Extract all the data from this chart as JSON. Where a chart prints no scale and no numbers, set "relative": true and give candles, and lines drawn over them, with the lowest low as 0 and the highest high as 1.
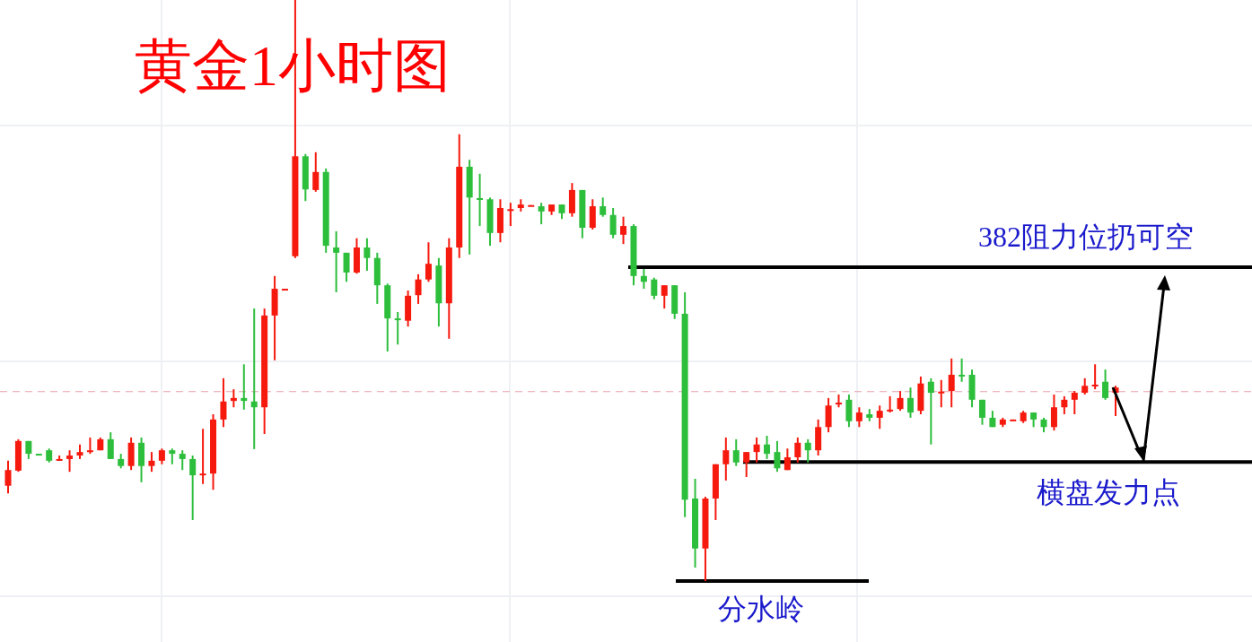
{
  "chart_data": {
    "type": "candlestick",
    "title": "黄金1小时图",
    "relative": true,
    "grid": true,
    "categories": [
      null,
      null,
      null,
      null,
      null,
      null,
      null,
      null,
      null,
      null,
      null,
      null,
      null,
      null,
      null,
      null,
      null,
      null,
      null,
      null,
      null,
      null,
      null,
      null,
      null,
      null,
      null,
      null,
      null,
      null,
      null,
      null,
      null,
      null,
      null,
      null,
      null,
      null,
      null,
      null,
      null,
      null,
      null,
      null,
      null,
      null,
      null,
      null,
      null,
      null,
      null,
      null,
      null,
      null,
      null,
      null,
      null,
      null,
      null,
      null,
      null,
      null,
      null,
      null,
      null,
      null,
      null,
      null,
      null,
      null,
      null,
      null,
      null,
      null,
      null,
      null,
      null,
      null,
      null,
      null,
      null,
      null,
      null,
      null,
      null,
      null,
      null,
      null,
      null,
      null,
      null,
      null,
      null,
      null,
      null,
      null,
      null,
      null,
      null,
      null,
      null,
      null,
      null,
      null,
      null,
      null,
      null,
      null,
      null
    ],
    "ohlc": [
      [
        0.164,
        0.207,
        0.151,
        0.191
      ],
      [
        0.19,
        0.244,
        0.188,
        0.241
      ],
      [
        0.241,
        0.241,
        0.21,
        0.219
      ],
      [
        0.219,
        0.219,
        0.218,
        0.218
      ],
      [
        0.225,
        0.228,
        0.204,
        0.207
      ],
      [
        0.207,
        0.216,
        0.207,
        0.21
      ],
      [
        0.21,
        0.225,
        0.188,
        0.216
      ],
      [
        0.216,
        0.235,
        0.21,
        0.222
      ],
      [
        0.222,
        0.247,
        0.219,
        0.225
      ],
      [
        0.225,
        0.247,
        0.225,
        0.244
      ],
      [
        0.244,
        0.256,
        0.21,
        0.21
      ],
      [
        0.21,
        0.219,
        0.194,
        0.198
      ],
      [
        0.198,
        0.247,
        0.191,
        0.238
      ],
      [
        0.238,
        0.247,
        0.17,
        0.198
      ],
      [
        0.198,
        0.222,
        0.188,
        0.207
      ],
      [
        0.207,
        0.228,
        0.201,
        0.225
      ],
      [
        0.225,
        0.228,
        0.201,
        0.219
      ],
      [
        0.219,
        0.225,
        0.191,
        0.21
      ],
      [
        0.21,
        0.216,
        0.105,
        0.182
      ],
      [
        0.182,
        0.262,
        0.167,
        0.185
      ],
      [
        0.185,
        0.287,
        0.157,
        0.278
      ],
      [
        0.278,
        0.349,
        0.265,
        0.309
      ],
      [
        0.31,
        0.33,
        0.299,
        0.315
      ],
      [
        0.315,
        0.373,
        0.295,
        0.31
      ],
      [
        0.309,
        0.469,
        0.227,
        0.299
      ],
      [
        0.299,
        0.469,
        0.253,
        0.457
      ],
      [
        0.457,
        0.525,
        0.38,
        0.503
      ],
      [
        0.502,
        0.503,
        0.502,
        0.503
      ],
      [
        0.559,
        1,
        0.556,
        0.731
      ],
      [
        0.731,
        0.735,
        0.654,
        0.674
      ],
      [
        0.673,
        0.738,
        0.67,
        0.704
      ],
      [
        0.704,
        0.71,
        0.565,
        0.577
      ],
      [
        0.574,
        0.602,
        0.497,
        0.565
      ],
      [
        0.565,
        0.565,
        0.515,
        0.531
      ],
      [
        0.531,
        0.59,
        0.529,
        0.574
      ],
      [
        0.574,
        0.59,
        0.534,
        0.556
      ],
      [
        0.556,
        0.565,
        0.477,
        0.509
      ],
      [
        0.509,
        0.512,
        0.395,
        0.452
      ],
      [
        0.452,
        0.463,
        0.407,
        0.449
      ],
      [
        0.448,
        0.5,
        0.438,
        0.491
      ],
      [
        0.492,
        0.528,
        0.477,
        0.519
      ],
      [
        0.519,
        0.583,
        0.515,
        0.546
      ],
      [
        0.543,
        0.556,
        0.438,
        0.478
      ],
      [
        0.478,
        0.59,
        0.417,
        0.574
      ],
      [
        0.574,
        0.769,
        0.556,
        0.713
      ],
      [
        0.713,
        0.725,
        0.562,
        0.66
      ],
      [
        0.659,
        0.701,
        0.611,
        0.657
      ],
      [
        0.657,
        0.66,
        0.577,
        0.599
      ],
      [
        0.599,
        0.657,
        0.583,
        0.642
      ],
      [
        0.639,
        0.651,
        0.611,
        0.64
      ],
      [
        0.642,
        0.657,
        0.636,
        0.648
      ],
      [
        0.645,
        0.647,
        0.645,
        0.647
      ],
      [
        0.645,
        0.651,
        0.614,
        0.636
      ],
      [
        0.636,
        0.648,
        0.63,
        0.648
      ],
      [
        0.648,
        0.648,
        0.623,
        0.633
      ],
      [
        0.633,
        0.685,
        0.627,
        0.673
      ],
      [
        0.673,
        0.673,
        0.59,
        0.608
      ],
      [
        0.608,
        0.657,
        0.605,
        0.645
      ],
      [
        0.645,
        0.66,
        0.627,
        0.63
      ],
      [
        0.63,
        0.642,
        0.59,
        0.596
      ],
      [
        0.596,
        0.627,
        0.58,
        0.611
      ],
      [
        0.611,
        0.614,
        0.509,
        0.525
      ],
      [
        0.525,
        0.537,
        0.503,
        0.515
      ],
      [
        0.519,
        0.522,
        0.485,
        0.491
      ],
      [
        0.491,
        0.509,
        0.469,
        0.509
      ],
      [
        0.509,
        0.509,
        0.451,
        0.46
      ],
      [
        0.46,
        0.497,
        0.11,
        0.14
      ],
      [
        0.142,
        0.176,
        0.023,
        0.056
      ],
      [
        0.056,
        0.145,
        0,
        0.142
      ],
      [
        0.142,
        0.201,
        0.105,
        0.201
      ],
      [
        0.201,
        0.247,
        0.173,
        0.225
      ],
      [
        0.225,
        0.244,
        0.198,
        0.204
      ],
      [
        0.204,
        0.222,
        0.179,
        0.222
      ],
      [
        0.222,
        0.247,
        0.204,
        0.235
      ],
      [
        0.235,
        0.25,
        0.21,
        0.219
      ],
      [
        0.222,
        0.241,
        0.188,
        0.194
      ],
      [
        0.191,
        0.228,
        0.191,
        0.213
      ],
      [
        0.213,
        0.247,
        0.204,
        0.238
      ],
      [
        0.238,
        0.244,
        0.204,
        0.225
      ],
      [
        0.225,
        0.278,
        0.216,
        0.265
      ],
      [
        0.265,
        0.315,
        0.256,
        0.302
      ],
      [
        0.306,
        0.321,
        0.299,
        0.307
      ],
      [
        0.312,
        0.321,
        0.265,
        0.275
      ],
      [
        0.275,
        0.299,
        0.265,
        0.29
      ],
      [
        0.287,
        0.296,
        0.275,
        0.281
      ],
      [
        0.281,
        0.302,
        0.262,
        0.293
      ],
      [
        0.293,
        0.318,
        0.29,
        0.295
      ],
      [
        0.296,
        0.327,
        0.293,
        0.315
      ],
      [
        0.315,
        0.333,
        0.281,
        0.29
      ],
      [
        0.293,
        0.352,
        0.287,
        0.34
      ],
      [
        0.343,
        0.349,
        0.235,
        0.324
      ],
      [
        0.324,
        0.346,
        0.299,
        0.326
      ],
      [
        0.327,
        0.383,
        0.299,
        0.355
      ],
      [
        0.355,
        0.383,
        0.343,
        0.352
      ],
      [
        0.355,
        0.364,
        0.299,
        0.312
      ],
      [
        0.312,
        0.312,
        0.269,
        0.281
      ],
      [
        0.281,
        0.293,
        0.265,
        0.265
      ],
      [
        0.269,
        0.281,
        0.265,
        0.278
      ],
      [
        0.276,
        0.278,
        0.276,
        0.278
      ],
      [
        0.275,
        0.293,
        0.272,
        0.29
      ],
      [
        0.29,
        0.29,
        0.265,
        0.278
      ],
      [
        0.278,
        0.281,
        0.256,
        0.265
      ],
      [
        0.265,
        0.321,
        0.259,
        0.299
      ],
      [
        0.299,
        0.318,
        0.287,
        0.312
      ],
      [
        0.312,
        0.327,
        0.287,
        0.324
      ],
      [
        0.324,
        0.349,
        0.321,
        0.336
      ],
      [
        0.336,
        0.373,
        0.33,
        0.338
      ],
      [
        0.343,
        0.364,
        0.312,
        0.315
      ],
      [
        0.324,
        0.336,
        0.284,
        0.333
      ]
    ],
    "colors": [
      "#f5190e",
      "#f5190e",
      "#2dbe3c",
      "#2dbe3c",
      "#2dbe3c",
      "#f5190e",
      "#f5190e",
      "#f5190e",
      "#f5190e",
      "#f5190e",
      "#2dbe3c",
      "#2dbe3c",
      "#f5190e",
      "#2dbe3c",
      "#f5190e",
      "#f5190e",
      "#2dbe3c",
      "#2dbe3c",
      "#2dbe3c",
      "#f5190e",
      "#f5190e",
      "#f5190e",
      "#f5190e",
      "#2dbe3c",
      "#2dbe3c",
      "#f5190e",
      "#f5190e",
      "#f5190e",
      "#f5190e",
      "#2dbe3c",
      "#f5190e",
      "#2dbe3c",
      "#2dbe3c",
      "#2dbe3c",
      "#f5190e",
      "#2dbe3c",
      "#2dbe3c",
      "#2dbe3c",
      "#2dbe3c",
      "#f5190e",
      "#f5190e",
      "#f5190e",
      "#2dbe3c",
      "#f5190e",
      "#f5190e",
      "#2dbe3c",
      "#2dbe3c",
      "#2dbe3c",
      "#f5190e",
      "#f5190e",
      "#f5190e",
      "#f5190e",
      "#2dbe3c",
      "#f5190e",
      "#2dbe3c",
      "#f5190e",
      "#2dbe3c",
      "#f5190e",
      "#2dbe3c",
      "#2dbe3c",
      "#f5190e",
      "#2dbe3c",
      "#2dbe3c",
      "#2dbe3c",
      "#f5190e",
      "#2dbe3c",
      "#2dbe3c",
      "#2dbe3c",
      "#f5190e",
      "#f5190e",
      "#f5190e",
      "#2dbe3c",
      "#f5190e",
      "#f5190e",
      "#2dbe3c",
      "#2dbe3c",
      "#f5190e",
      "#f5190e",
      "#2dbe3c",
      "#f5190e",
      "#f5190e",
      "#f5190e",
      "#2dbe3c",
      "#f5190e",
      "#2dbe3c",
      "#f5190e",
      "#f5190e",
      "#f5190e",
      "#2dbe3c",
      "#f5190e",
      "#2dbe3c",
      "#f5190e",
      "#f5190e",
      "#2dbe3c",
      "#2dbe3c",
      "#2dbe3c",
      "#2dbe3c",
      "#f5190e",
      "#f5190e",
      "#f5190e",
      "#2dbe3c",
      "#2dbe3c",
      "#f5190e",
      "#f5190e",
      "#f5190e",
      "#f5190e",
      "#f5190e",
      "#2dbe3c",
      "#f5190e"
    ],
    "ref_lines": [
      {
        "axis": "y",
        "value": 0.54,
        "label": "382阻力位扔可空",
        "color": "#000000"
      },
      {
        "axis": "y",
        "value": 0.205,
        "label": "横盘发力点",
        "color": "#000000"
      },
      {
        "axis": "y",
        "value": 0,
        "label": "分水岭",
        "color": "#000000"
      },
      {
        "axis": "y",
        "value": 0.326,
        "color": "#e8a0a8",
        "line_style": "dashed"
      }
    ]
  }
}
